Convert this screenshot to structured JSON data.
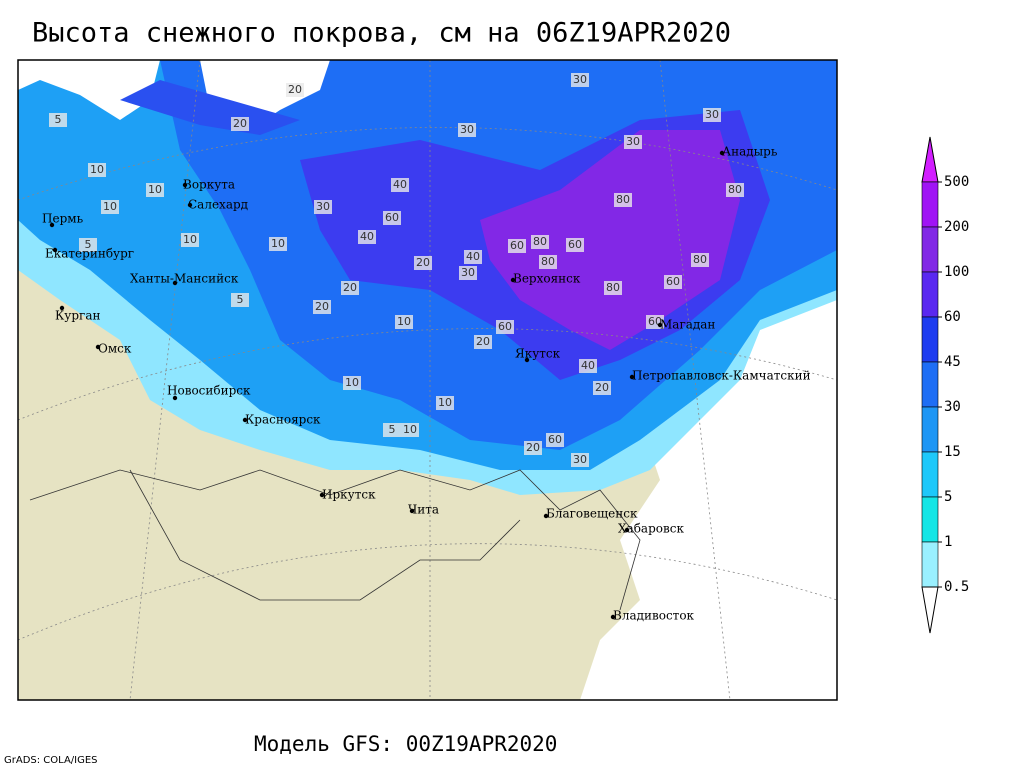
{
  "title": "Высота снежного покрова, см на 06Z19APR2020",
  "footer": "Модель GFS: 00Z19APR2020",
  "credit": "GrADS: COLA/IGES",
  "cities": [
    "Пермь",
    "Екатеринбург",
    "Ханты-Мансийск",
    "Курган",
    "Омск",
    "Новосибирск",
    "Красноярск",
    "Иркутск",
    "Чита",
    "Благовещенск",
    "Хабаровск",
    "Владивосток",
    "Якутск",
    "Верхоянск",
    "Магадан",
    "Петропавловск-Камчатский",
    "Анадырь",
    "Воркута",
    "Салехард"
  ],
  "contour_labels": [
    30,
    20,
    30,
    30,
    20,
    5,
    10,
    10,
    10,
    10,
    5,
    40,
    30,
    10,
    60,
    40,
    40,
    30,
    80,
    60,
    80,
    60,
    80,
    80,
    60,
    20,
    20,
    60,
    80,
    80,
    60,
    40,
    20,
    20,
    10,
    5,
    10,
    30,
    20,
    10,
    5,
    10,
    30,
    60,
    20
  ],
  "colorbar": {
    "levels": [
      500,
      200,
      100,
      60,
      45,
      30,
      15,
      5,
      1,
      0.5
    ],
    "colors": [
      "#d21eff",
      "#a014f5",
      "#8228e6",
      "#5a28f0",
      "#1e3cf0",
      "#1e6ef5",
      "#1e96f5",
      "#1ec8fa",
      "#14e6e6",
      "#9af0ff",
      "#ffffff"
    ]
  }
}
